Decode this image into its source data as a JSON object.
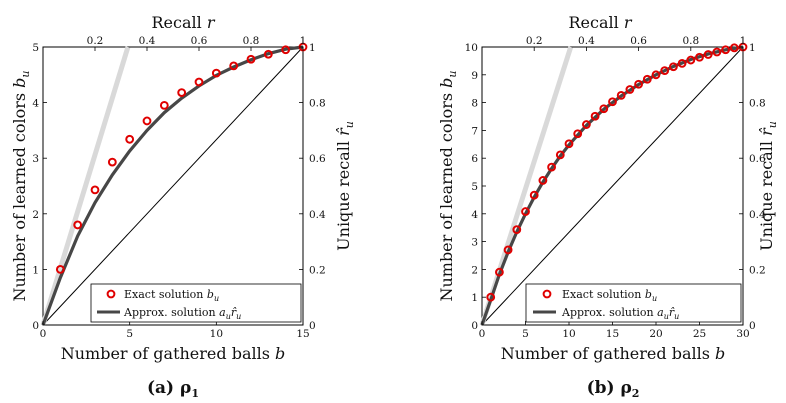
{
  "chart_data": [
    {
      "type": "line",
      "caption_label": "(a)",
      "caption_symbol": "ρ",
      "caption_subscript": "1",
      "xlabel": "Number of gathered balls",
      "xlabel_var": "b",
      "ylabel": "Number of learned colors",
      "ylabel_var": "b",
      "ylabel_var_sub": "u",
      "top_xlabel": "Recall",
      "top_xlabel_var": "r",
      "right_ylabel": "Unique recall",
      "right_ylabel_var": "r̂",
      "right_ylabel_var_sub": "u",
      "xlim": [
        0,
        15
      ],
      "ylim": [
        0,
        5
      ],
      "xticks": [
        "0",
        "5",
        "10",
        "15"
      ],
      "yticks": [
        "0",
        "1",
        "2",
        "3",
        "4",
        "5"
      ],
      "top_ticks": [
        "0.2",
        "0.4",
        "0.6",
        "0.8",
        "1"
      ],
      "top_tick_values": [
        3,
        6,
        9,
        12,
        15
      ],
      "right_ticks": [
        "0",
        "0.2",
        "0.4",
        "0.6",
        "0.8",
        "1"
      ],
      "right_tick_values": [
        0,
        1,
        2,
        3,
        4,
        5
      ],
      "legend": {
        "position": "bottom-right",
        "exact_label": "Exact solution",
        "exact_var": "b",
        "exact_sub": "u",
        "approx_label": "Approx. solution",
        "approx_var": "a",
        "approx_var_sub": "u",
        "approx_var2": "r̂",
        "approx_var2_sub": "u"
      },
      "series": [
        {
          "name": "Exact solution",
          "style": "markers",
          "x": [
            1,
            2,
            3,
            4,
            5,
            6,
            7,
            8,
            9,
            10,
            11,
            12,
            13,
            14,
            15
          ],
          "y": [
            1.0,
            1.8,
            2.43,
            2.93,
            3.34,
            3.67,
            3.95,
            4.18,
            4.37,
            4.53,
            4.66,
            4.78,
            4.87,
            4.95,
            5.0
          ]
        },
        {
          "name": "Approx. solution",
          "style": "line",
          "x": [
            0,
            1,
            2,
            3,
            4,
            5,
            6,
            7,
            8,
            9,
            10,
            11,
            12,
            13,
            14,
            15
          ],
          "y": [
            0,
            0.85,
            1.6,
            2.2,
            2.7,
            3.13,
            3.5,
            3.82,
            4.08,
            4.3,
            4.49,
            4.64,
            4.77,
            4.88,
            4.96,
            5.0
          ]
        }
      ],
      "reference_lines": [
        {
          "name": "diagonal",
          "x": [
            0,
            15
          ],
          "y": [
            0,
            5
          ]
        },
        {
          "name": "gray-upper-bound",
          "x": [
            0,
            4.9
          ],
          "y": [
            0,
            5
          ]
        }
      ]
    },
    {
      "type": "line",
      "caption_label": "(b)",
      "caption_symbol": "ρ",
      "caption_subscript": "2",
      "xlabel": "Number of gathered balls",
      "xlabel_var": "b",
      "ylabel": "Number of learned colors",
      "ylabel_var": "b",
      "ylabel_var_sub": "u",
      "top_xlabel": "Recall",
      "top_xlabel_var": "r",
      "right_ylabel": "Unique recall",
      "right_ylabel_var": "r̂",
      "right_ylabel_var_sub": "u",
      "xlim": [
        0,
        30
      ],
      "ylim": [
        0,
        10
      ],
      "xticks": [
        "0",
        "5",
        "10",
        "15",
        "20",
        "25",
        "30"
      ],
      "yticks": [
        "0",
        "1",
        "2",
        "3",
        "4",
        "5",
        "6",
        "7",
        "8",
        "9",
        "10"
      ],
      "top_ticks": [
        "0.2",
        "0.4",
        "0.6",
        "0.8",
        "1"
      ],
      "top_tick_values": [
        6,
        12,
        18,
        24,
        30
      ],
      "right_ticks": [
        "0",
        "0.2",
        "0.4",
        "0.6",
        "0.8",
        "1"
      ],
      "right_tick_values": [
        0,
        2,
        4,
        6,
        8,
        10
      ],
      "legend": {
        "position": "bottom-right",
        "exact_label": "Exact solution",
        "exact_var": "b",
        "exact_sub": "u",
        "approx_label": "Approx. solution",
        "approx_var": "a",
        "approx_var_sub": "u",
        "approx_var2": "r̂",
        "approx_var2_sub": "u"
      },
      "series": [
        {
          "name": "Exact solution",
          "style": "markers",
          "x": [
            1,
            2,
            3,
            4,
            5,
            6,
            7,
            8,
            9,
            10,
            11,
            12,
            13,
            14,
            15,
            16,
            17,
            18,
            19,
            20,
            21,
            22,
            23,
            24,
            25,
            26,
            27,
            28,
            29,
            30
          ],
          "y": [
            1.0,
            1.9,
            2.7,
            3.43,
            4.08,
            4.67,
            5.2,
            5.68,
            6.12,
            6.52,
            6.88,
            7.21,
            7.51,
            7.78,
            8.03,
            8.26,
            8.47,
            8.66,
            8.84,
            9.0,
            9.15,
            9.29,
            9.41,
            9.53,
            9.63,
            9.73,
            9.82,
            9.9,
            9.97,
            10.0
          ]
        },
        {
          "name": "Approx. solution",
          "style": "line",
          "x": [
            0,
            1,
            2,
            3,
            4,
            5,
            6,
            7,
            8,
            9,
            10,
            12,
            14,
            16,
            18,
            20,
            22,
            24,
            26,
            28,
            30
          ],
          "y": [
            0,
            0.9,
            1.82,
            2.62,
            3.35,
            4.0,
            4.6,
            5.14,
            5.63,
            6.08,
            6.48,
            7.18,
            7.76,
            8.24,
            8.65,
            9.0,
            9.3,
            9.55,
            9.75,
            9.9,
            10.0
          ]
        }
      ],
      "reference_lines": [
        {
          "name": "diagonal",
          "x": [
            0,
            30
          ],
          "y": [
            0,
            10
          ]
        },
        {
          "name": "gray-upper-bound",
          "x": [
            0,
            10.2
          ],
          "y": [
            0,
            10
          ]
        }
      ]
    }
  ],
  "colors": {
    "marker": "#e00000",
    "approx_line": "#474747",
    "diagonal": "#000000",
    "gray_line": "#d9d9d9"
  }
}
